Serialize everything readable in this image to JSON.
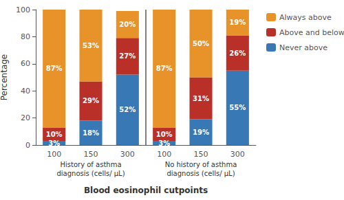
{
  "chart_data": {
    "type": "bar",
    "stacked": true,
    "orientation": "vertical",
    "xlabel": "Blood eosinophil cutpoints",
    "ylabel": "Percentage",
    "categories": [
      "100",
      "150",
      "300",
      "100",
      "150",
      "300"
    ],
    "annotations": [
      "History of asthma\ndiagnosis (cells/ μL)",
      "No history of asthma\ndiagnosis (cells/ μL)"
    ],
    "series": [
      {
        "name": "Never above",
        "color": "#3878b4",
        "values": [
          3,
          18,
          52,
          3,
          19,
          55
        ],
        "value_labels": [
          "3%",
          "18%",
          "52%",
          "3%",
          "19%",
          "55%"
        ]
      },
      {
        "name": "Above and below",
        "color": "#b83028",
        "values": [
          10,
          29,
          27,
          10,
          31,
          26
        ],
        "value_labels": [
          "10%",
          "29%",
          "27%",
          "10%",
          "31%",
          "26%"
        ]
      },
      {
        "name": "Always above",
        "color": "#e8922a",
        "values": [
          87,
          53,
          20,
          87,
          50,
          19
        ],
        "value_labels": [
          "87%",
          "53%",
          "20%",
          "87%",
          "50%",
          "19%"
        ]
      }
    ],
    "ylim": [
      0,
      100
    ],
    "yticks": [
      0,
      20,
      40,
      60,
      80,
      100
    ],
    "grid": false,
    "legend": "right",
    "data_labels": true
  }
}
